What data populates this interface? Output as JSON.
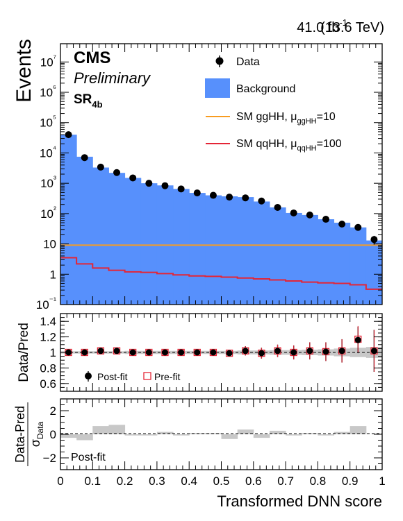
{
  "chart_data": [
    {
      "type": "histogram",
      "header": {
        "lumi": "41.0 fb",
        "lumi_sup": "-1",
        "energy": "(13.6 TeV)",
        "experiment": "CMS",
        "status": "Preliminary",
        "region": "SR",
        "region_sub": "4b"
      },
      "ylabel": "Events",
      "yscale": "log",
      "ylim": [
        0.1,
        40000000
      ],
      "xlim": [
        0,
        1
      ],
      "bin_edges": [
        0,
        0.05,
        0.1,
        0.15,
        0.2,
        0.25,
        0.3,
        0.35,
        0.4,
        0.45,
        0.5,
        0.55,
        0.6,
        0.65,
        0.7,
        0.75,
        0.8,
        0.85,
        0.9,
        0.95,
        1.0
      ],
      "y_tick_labels": [
        "10⁻¹",
        "1",
        "10",
        "10²",
        "10³",
        "10⁴",
        "10⁵",
        "10⁶",
        "10⁷"
      ],
      "legend": {
        "data": "Data",
        "background": "Background",
        "gghh": "SM ggHH, μ",
        "gghh_sub": "ggHH",
        "gghh_val": "=10",
        "qqhh": "SM qqHH, μ",
        "qqhh_sub": "qqHH",
        "qqhh_val": "=100"
      },
      "series": [
        {
          "name": "Background",
          "color": "#5790fc",
          "values": [
            40000,
            7500,
            3300,
            2200,
            1500,
            1000,
            850,
            650,
            480,
            400,
            370,
            350,
            250,
            160,
            105,
            90,
            65,
            50,
            35,
            13
          ]
        },
        {
          "name": "SM ggHH, μ ggHH=10",
          "color": "#f89c20",
          "values": [
            9.1,
            9.1,
            9.1,
            9.1,
            9.1,
            9.1,
            9.1,
            9.1,
            9.1,
            9.1,
            9.1,
            9.1,
            9.1,
            9.1,
            9.1,
            9.1,
            9.1,
            9.1,
            9.1,
            9.1
          ]
        },
        {
          "name": "SM qqHH, μ qqHH=100",
          "color": "#e42536",
          "values": [
            3.5,
            2.2,
            1.6,
            1.35,
            1.2,
            1.15,
            1.05,
            0.95,
            0.88,
            0.85,
            0.8,
            0.75,
            0.7,
            0.65,
            0.6,
            0.55,
            0.52,
            0.5,
            0.45,
            0.32
          ]
        },
        {
          "name": "Data",
          "color": "#000000",
          "values": [
            40000,
            7000,
            3400,
            2250,
            1500,
            1000,
            830,
            650,
            480,
            400,
            350,
            330,
            260,
            160,
            105,
            90,
            65,
            45,
            35,
            14
          ]
        }
      ]
    },
    {
      "type": "ratio",
      "ylabel": "Data/Pred",
      "ylim": [
        0.5,
        1.5
      ],
      "y_ticks": [
        "0.6",
        "0.8",
        "1",
        "1.2",
        "1.4"
      ],
      "legend": {
        "postfit": "Post-fit",
        "prefit": "Pre-fit"
      },
      "series": [
        {
          "name": "Post-fit",
          "color": "#000000",
          "values": [
            1.0,
            1.0,
            1.02,
            1.02,
            1.0,
            1.0,
            1.0,
            1.0,
            1.0,
            1.0,
            0.99,
            1.02,
            0.99,
            1.02,
            1.0,
            1.02,
            1.01,
            1.02,
            1.16,
            1.02
          ],
          "errors": [
            0.02,
            0.02,
            0.03,
            0.03,
            0.03,
            0.03,
            0.03,
            0.04,
            0.04,
            0.04,
            0.04,
            0.06,
            0.07,
            0.08,
            0.09,
            0.11,
            0.12,
            0.15,
            0.17,
            0.27
          ]
        },
        {
          "name": "Pre-fit",
          "color": "#e42536",
          "values": [
            1.0,
            1.0,
            1.02,
            1.02,
            1.0,
            1.0,
            1.0,
            1.0,
            1.0,
            1.0,
            0.99,
            1.02,
            0.99,
            1.02,
            1.0,
            1.02,
            1.01,
            1.02,
            1.17,
            1.02
          ]
        }
      ],
      "unc_band": [
        0.015,
        0.015,
        0.015,
        0.015,
        0.02,
        0.02,
        0.02,
        0.02,
        0.02,
        0.02,
        0.02,
        0.025,
        0.025,
        0.03,
        0.03,
        0.035,
        0.04,
        0.05,
        0.06,
        0.07
      ]
    },
    {
      "type": "pull",
      "ylabel_num": "Data-Pred",
      "ylabel_den": "σ",
      "ylabel_den_sub": "Data",
      "ylim": [
        -3,
        3
      ],
      "y_ticks": [
        "−2",
        "0",
        "2"
      ],
      "label": "Post-fit",
      "xlabel": "Transformed DNN score",
      "x_ticks": [
        "0",
        "0.1",
        "0.2",
        "0.3",
        "0.4",
        "0.5",
        "0.6",
        "0.7",
        "0.8",
        "0.9",
        "1"
      ],
      "values": [
        -0.3,
        -0.5,
        0.7,
        0.8,
        -0.1,
        -0.1,
        0.2,
        -0.1,
        0.1,
        0.1,
        -0.4,
        0.4,
        -0.3,
        0.3,
        -0.1,
        0.1,
        -0.1,
        0.2,
        0.7,
        0.0
      ]
    }
  ]
}
